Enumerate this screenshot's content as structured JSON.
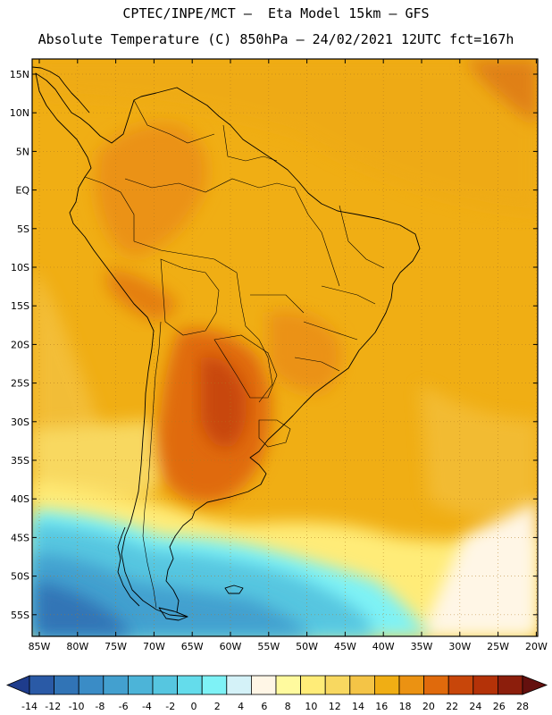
{
  "header": {
    "line1": "CPTEC/INPE/MCT –  Eta Model 15km – GFS",
    "line2": "Absolute Temperature (C) 850hPa – 24/02/2021 12UTC fct=167h"
  },
  "map": {
    "lat_labels": [
      "15N",
      "10N",
      "5N",
      "EQ",
      "5S",
      "10S",
      "15S",
      "20S",
      "25S",
      "30S",
      "35S",
      "40S",
      "45S",
      "50S",
      "55S"
    ],
    "lon_labels": [
      "85W",
      "80W",
      "75W",
      "70W",
      "65W",
      "60W",
      "55W",
      "50W",
      "45W",
      "40W",
      "35W",
      "30W",
      "25W",
      "20W"
    ]
  },
  "colorbar": {
    "levels": [
      "-14",
      "-12",
      "-10",
      "-8",
      "-6",
      "-4",
      "-2",
      "0",
      "2",
      "4",
      "6",
      "8",
      "10",
      "12",
      "14",
      "16",
      "18",
      "20",
      "22",
      "24",
      "26",
      "28"
    ],
    "colors": [
      "#1e3c8c",
      "#2a5aa6",
      "#3174b6",
      "#3a8cc6",
      "#43a0cf",
      "#4cb4d8",
      "#56c6e0",
      "#64dceb",
      "#7ef2f6",
      "#d4f2f8",
      "#fff6e6",
      "#fffa9e",
      "#ffec78",
      "#f8d860",
      "#f4c446",
      "#f0ae14",
      "#eb9212",
      "#e06a0c",
      "#c8460a",
      "#b43208",
      "#8c1e0c",
      "#64100e"
    ]
  },
  "colors": {
    "ocean_warm": "#f0ae14",
    "land_hot": "#e06a0c",
    "cold_south": "#4cb4d8"
  }
}
